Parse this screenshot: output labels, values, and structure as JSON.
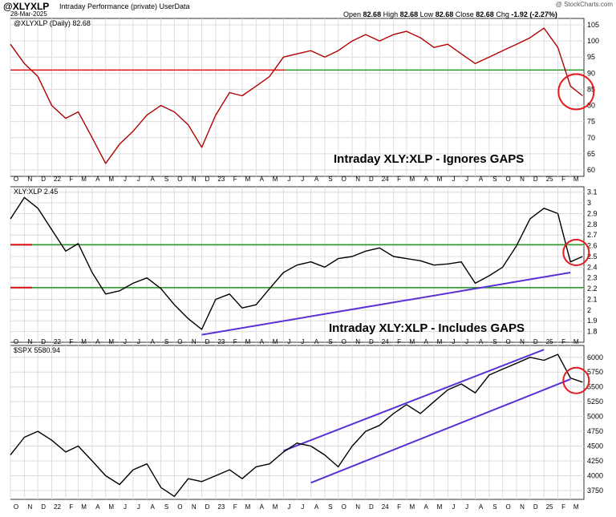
{
  "header": {
    "symbol": "@XLYXLP",
    "subtitle": "Intraday Performance (private)  UserData",
    "date": "28-Mar-2025",
    "brand": "@ StockCharts.com",
    "open_label": "Open",
    "open_value": "82.68",
    "high_label": "High",
    "high_value": "82.68",
    "low_label": "Low",
    "low_value": "82.68",
    "close_label": "Close",
    "close_value": "82.68",
    "chg_label": "Chg",
    "chg_value": "-1.92 (-2.27%)"
  },
  "x_axis_labels": [
    "O",
    "N",
    "D",
    "22",
    "F",
    "M",
    "A",
    "M",
    "J",
    "J",
    "A",
    "S",
    "O",
    "N",
    "D",
    "23",
    "F",
    "M",
    "A",
    "M",
    "J",
    "J",
    "A",
    "S",
    "O",
    "N",
    "D",
    "24",
    "F",
    "M",
    "A",
    "M",
    "J",
    "J",
    "A",
    "S",
    "O",
    "N",
    "D",
    "25",
    "F",
    "M"
  ],
  "colors": {
    "panel1_line": "#b00000",
    "panel2_line": "#000000",
    "panel3_line": "#000000",
    "trendline": "#5a2fd6",
    "support_green": "#2a9a2a",
    "resistance_red": "#dd1111",
    "circle": "#e41a1c",
    "grid": "#dcdcdc"
  },
  "chart_data": [
    {
      "type": "line",
      "legend": "@XLYXLP (Daily) 82.68",
      "annotation": "Intraday XLY:XLP - Ignores GAPS",
      "ylim": [
        58,
        107
      ],
      "y_ticks": [
        60,
        65,
        70,
        75,
        80,
        85,
        90,
        95,
        100,
        105
      ],
      "horizontal_line": 91,
      "x": [
        "2021-10",
        "2021-11",
        "2021-12",
        "2022-01",
        "2022-02",
        "2022-03",
        "2022-04",
        "2022-05",
        "2022-06",
        "2022-07",
        "2022-08",
        "2022-09",
        "2022-10",
        "2022-11",
        "2022-12",
        "2023-01",
        "2023-02",
        "2023-03",
        "2023-04",
        "2023-05",
        "2023-06",
        "2023-07",
        "2023-08",
        "2023-09",
        "2023-10",
        "2023-11",
        "2023-12",
        "2024-01",
        "2024-02",
        "2024-03",
        "2024-04",
        "2024-05",
        "2024-06",
        "2024-07",
        "2024-08",
        "2024-09",
        "2024-10",
        "2024-11",
        "2024-12",
        "2025-01",
        "2025-02",
        "2025-03",
        "2025-03-28"
      ],
      "series": [
        {
          "values": [
            99,
            93,
            89,
            80,
            76,
            78,
            70,
            62,
            68,
            72,
            77,
            80,
            78,
            74,
            67,
            77,
            84,
            83,
            86,
            89,
            95,
            96,
            97,
            95,
            97,
            100,
            102,
            100,
            102,
            103,
            101,
            98,
            99,
            96,
            93,
            95,
            97,
            99,
            101,
            104,
            98,
            86,
            83
          ]
        }
      ]
    },
    {
      "type": "line",
      "legend": "XLY:XLP 2.45",
      "annotation": "Intraday XLY:XLP - Includes GAPS",
      "ylim": [
        1.7,
        3.15
      ],
      "y_ticks": [
        1.8,
        1.9,
        2.0,
        2.1,
        2.2,
        2.3,
        2.4,
        2.5,
        2.6,
        2.7,
        2.8,
        2.9,
        3.0,
        3.1
      ],
      "horizontal_lines": [
        2.61,
        2.21
      ],
      "trendline_from": [
        "2022-12",
        1.77
      ],
      "trendline_to": [
        "2025-03",
        2.35
      ],
      "x": [
        "2021-10",
        "2021-11",
        "2021-12",
        "2022-01",
        "2022-02",
        "2022-03",
        "2022-04",
        "2022-05",
        "2022-06",
        "2022-07",
        "2022-08",
        "2022-09",
        "2022-10",
        "2022-11",
        "2022-12",
        "2023-01",
        "2023-02",
        "2023-03",
        "2023-04",
        "2023-05",
        "2023-06",
        "2023-07",
        "2023-08",
        "2023-09",
        "2023-10",
        "2023-11",
        "2023-12",
        "2024-01",
        "2024-02",
        "2024-03",
        "2024-04",
        "2024-05",
        "2024-06",
        "2024-07",
        "2024-08",
        "2024-09",
        "2024-10",
        "2024-11",
        "2024-12",
        "2025-01",
        "2025-02",
        "2025-03",
        "2025-03-28"
      ],
      "series": [
        {
          "values": [
            2.85,
            3.05,
            2.95,
            2.75,
            2.55,
            2.62,
            2.35,
            2.15,
            2.18,
            2.25,
            2.3,
            2.2,
            2.05,
            1.92,
            1.82,
            2.1,
            2.15,
            2.02,
            2.05,
            2.2,
            2.35,
            2.42,
            2.45,
            2.4,
            2.48,
            2.5,
            2.55,
            2.58,
            2.5,
            2.48,
            2.46,
            2.42,
            2.43,
            2.45,
            2.25,
            2.32,
            2.4,
            2.6,
            2.85,
            2.95,
            2.9,
            2.45,
            2.5
          ]
        }
      ]
    },
    {
      "type": "line",
      "legend": "$SPX 5580.94",
      "ylim": [
        3600,
        6200
      ],
      "y_ticks": [
        3750,
        4000,
        4250,
        4500,
        4750,
        5000,
        5250,
        5500,
        5750,
        6000
      ],
      "channel_upper": [
        [
          "2023-06",
          4420
        ],
        [
          "2025-01",
          6130
        ]
      ],
      "channel_lower": [
        [
          "2023-08",
          3880
        ],
        [
          "2025-03",
          5630
        ]
      ],
      "x": [
        "2021-10",
        "2021-11",
        "2021-12",
        "2022-01",
        "2022-02",
        "2022-03",
        "2022-04",
        "2022-05",
        "2022-06",
        "2022-07",
        "2022-08",
        "2022-09",
        "2022-10",
        "2022-11",
        "2022-12",
        "2023-01",
        "2023-02",
        "2023-03",
        "2023-04",
        "2023-05",
        "2023-06",
        "2023-07",
        "2023-08",
        "2023-09",
        "2023-10",
        "2023-11",
        "2023-12",
        "2024-01",
        "2024-02",
        "2024-03",
        "2024-04",
        "2024-05",
        "2024-06",
        "2024-07",
        "2024-08",
        "2024-09",
        "2024-10",
        "2024-11",
        "2024-12",
        "2025-01",
        "2025-02",
        "2025-03",
        "2025-03-28"
      ],
      "series": [
        {
          "values": [
            4350,
            4650,
            4750,
            4600,
            4400,
            4500,
            4250,
            4000,
            3850,
            4100,
            4200,
            3800,
            3650,
            3950,
            3900,
            4000,
            4100,
            3950,
            4150,
            4200,
            4400,
            4550,
            4500,
            4350,
            4150,
            4500,
            4750,
            4850,
            5050,
            5200,
            5050,
            5250,
            5450,
            5550,
            5400,
            5700,
            5800,
            5900,
            6000,
            5950,
            6050,
            5650,
            5580
          ]
        }
      ]
    }
  ]
}
